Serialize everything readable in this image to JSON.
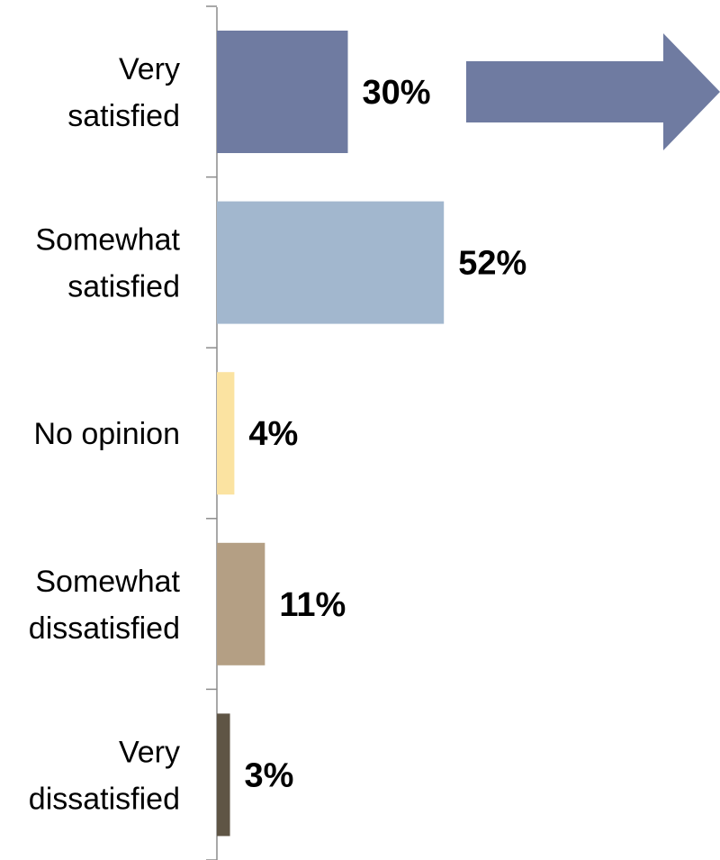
{
  "chart_data": {
    "type": "bar",
    "orientation": "horizontal",
    "categories": [
      [
        "Very",
        "satisfied"
      ],
      [
        "Somewhat",
        "satisfied"
      ],
      [
        "No opinion"
      ],
      [
        "Somewhat",
        "dissatisfied"
      ],
      [
        "Very",
        "dissatisfied"
      ]
    ],
    "values": [
      30,
      52,
      4,
      11,
      3
    ],
    "value_labels": [
      "30%",
      "52%",
      "4%",
      "11%",
      "3%"
    ],
    "colors": [
      "#6f7ba1",
      "#a2b7ce",
      "#fbe3a1",
      "#b49f84",
      "#5f5545"
    ],
    "xlim": [
      0,
      100
    ],
    "title": "",
    "xlabel": "",
    "ylabel": "",
    "grid": false,
    "legend": "none",
    "annotation": {
      "shape": "right-arrow",
      "color": "#6f7ba1",
      "points_to": "Very satisfied"
    }
  }
}
